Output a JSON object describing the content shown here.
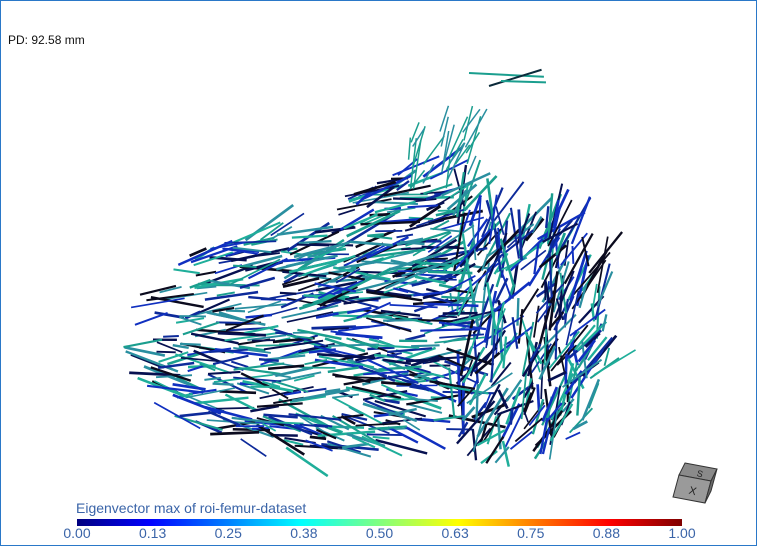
{
  "overlay": {
    "pd_label": "PD: 92.58 mm"
  },
  "colorbar": {
    "title": "Eigenvector max of roi-femur-dataset",
    "ticks": [
      "0.00",
      "0.13",
      "0.25",
      "0.38",
      "0.50",
      "0.63",
      "0.75",
      "0.88",
      "1.00"
    ],
    "range": [
      0,
      1
    ],
    "colormap": "jet"
  },
  "fiber_colors": [
    "#1a9e8e",
    "#1fae9a",
    "#0d2a9a",
    "#1030c0",
    "#061050",
    "#0b0b1e",
    "#2a8fa0"
  ],
  "orientation_cube": {
    "icon": "orientation-cube-icon"
  }
}
